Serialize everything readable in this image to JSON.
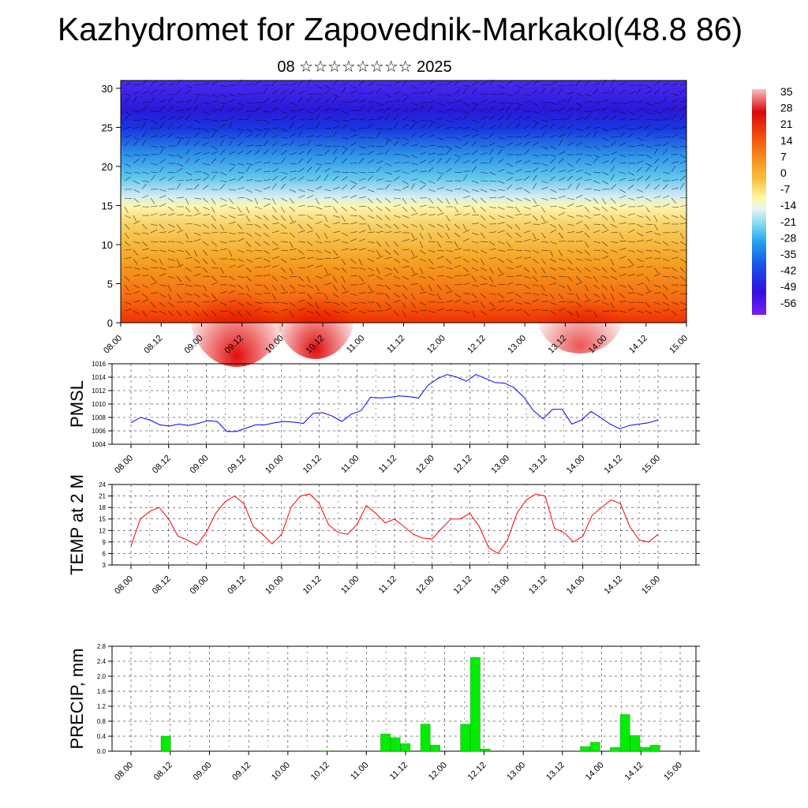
{
  "title": "Kazhydromet for Zapovednik-Markakol(48.8 86)",
  "subtitle": "08 ☆☆☆☆☆☆☆☆ 2025",
  "colors": {
    "pmsl_line": "#0000ff",
    "temp_line": "#ff0000",
    "precip_bar": "#00ee00",
    "grid": "#000000"
  },
  "chart_data": [
    {
      "type": "heatmap",
      "name_label": "",
      "x_ticks": [
        "08.00",
        "08.12",
        "09.00",
        "09.12",
        "10.00",
        "10.12",
        "11.00",
        "11.12",
        "12.00",
        "12.12",
        "13.00",
        "13.12",
        "14.00",
        "14.12",
        "15.00"
      ],
      "y_ticks": [
        "0",
        "5",
        "10",
        "15",
        "20",
        "25",
        "30"
      ],
      "ylim": [
        0,
        31
      ],
      "colorbar_labels": [
        "35",
        "28",
        "21",
        "14",
        "7",
        "0",
        "-7",
        "-14",
        "-21",
        "-28",
        "-35",
        "-42",
        "-49",
        "-56"
      ],
      "overlay": "wind barbs"
    },
    {
      "type": "line",
      "ylabel": "PMSL",
      "ylim": [
        1004,
        1016
      ],
      "y_ticks": [
        "1016",
        "1014",
        "1012",
        "1010",
        "1008",
        "1006",
        "1004"
      ],
      "x_ticks": [
        "08.00",
        "08.12",
        "09.00",
        "09.12",
        "10.00",
        "10.12",
        "11.00",
        "11.12",
        "12.00",
        "12.12",
        "13.00",
        "13.12",
        "14.00",
        "14.12",
        "15.00"
      ],
      "values": [
        1007.2,
        1008.0,
        1007.6,
        1006.9,
        1006.7,
        1007.0,
        1006.8,
        1007.1,
        1007.5,
        1007.4,
        1005.9,
        1005.9,
        1006.4,
        1006.9,
        1006.9,
        1007.2,
        1007.4,
        1007.3,
        1007.1,
        1008.6,
        1008.7,
        1008.2,
        1007.4,
        1008.5,
        1009.0,
        1011.0,
        1010.9,
        1011.0,
        1011.2,
        1011.1,
        1010.9,
        1012.8,
        1013.8,
        1014.4,
        1014.0,
        1013.4,
        1014.4,
        1013.8,
        1013.2,
        1013.1,
        1012.4,
        1011.0,
        1009.0,
        1007.8,
        1009.2,
        1009.2,
        1007.0,
        1007.6,
        1008.9,
        1008.0,
        1007.0,
        1006.3,
        1006.8,
        1007.0,
        1007.2,
        1007.6
      ]
    },
    {
      "type": "line",
      "ylabel": "TEMP at 2 M",
      "ylim": [
        3,
        24
      ],
      "y_ticks": [
        "24",
        "21",
        "18",
        "15",
        "12",
        "9",
        "6",
        "3"
      ],
      "x_ticks": [
        "08.00",
        "08.12",
        "09.00",
        "09.12",
        "10.00",
        "10.12",
        "11.00",
        "11.12",
        "12.00",
        "12.12",
        "13.00",
        "13.12",
        "14.00",
        "14.12",
        "15.00"
      ],
      "values": [
        8.0,
        15.0,
        17.0,
        18.0,
        15.0,
        10.5,
        9.5,
        8.2,
        11.5,
        16.5,
        19.5,
        21.0,
        19.0,
        13.0,
        11.0,
        8.5,
        11.0,
        18.0,
        21.0,
        21.5,
        19.0,
        13.5,
        11.5,
        11.0,
        13.5,
        18.5,
        16.5,
        14.0,
        15.0,
        13.0,
        11.0,
        10.0,
        9.8,
        12.5,
        15.0,
        15.0,
        16.5,
        13.0,
        7.5,
        6.0,
        9.5,
        16.5,
        20.0,
        21.5,
        21.0,
        12.5,
        11.5,
        9.0,
        10.5,
        16.0,
        18.0,
        20.0,
        19.0,
        13.0,
        9.5,
        9.0,
        11.0
      ]
    },
    {
      "type": "bar",
      "ylabel": "PRECIP, mm",
      "ylim": [
        0,
        2.8
      ],
      "y_ticks": [
        "2.8",
        "2.4",
        "2.0",
        "1.6",
        "1.2",
        "0.8",
        "0.4",
        "0.0"
      ],
      "x_ticks": [
        "08.00",
        "08.12",
        "09.00",
        "09.12",
        "10.00",
        "10.12",
        "11.00",
        "11.12",
        "12.00",
        "12.12",
        "13.00",
        "13.12",
        "14.00",
        "14.12",
        "15.00"
      ],
      "values": [
        0,
        0,
        0,
        0.4,
        0,
        0,
        0,
        0,
        0,
        0,
        0,
        0,
        0,
        0,
        0,
        0,
        0,
        0,
        0,
        0.01,
        0,
        0,
        0,
        0,
        0,
        0.46,
        0.36,
        0.2,
        0,
        0.72,
        0.16,
        0,
        0,
        0.72,
        2.5,
        0.06,
        0,
        0,
        0,
        0,
        0,
        0,
        0,
        0,
        0,
        0.12,
        0.24,
        0,
        0.1,
        0.98,
        0.42,
        0.1,
        0.16,
        0,
        0,
        0
      ]
    }
  ]
}
